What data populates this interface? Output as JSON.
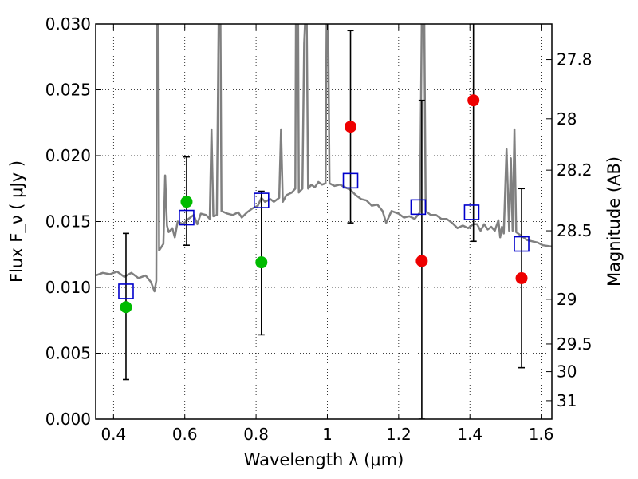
{
  "chart_data": {
    "type": "scatter",
    "xlabel": "Wavelength  λ (μm)",
    "ylabel": "Flux  F_ν  ( μJy )",
    "y2label": "Magnitude (AB)",
    "xlim": [
      0.35,
      1.63
    ],
    "ylim": [
      0.0,
      0.03
    ],
    "grid": true,
    "x_ticks": [
      0.4,
      0.6,
      0.8,
      1.0,
      1.2,
      1.4,
      1.6
    ],
    "x_tick_labels": [
      "0.4",
      "0.6",
      "0.8",
      "1",
      "1.2",
      "1.4",
      "1.6"
    ],
    "y_ticks": [
      0.0,
      0.005,
      0.01,
      0.015,
      0.02,
      0.025,
      0.03
    ],
    "y_tick_labels": [
      "0.000",
      "0.005",
      "0.010",
      "0.015",
      "0.020",
      "0.025",
      "0.030"
    ],
    "y2_ticks": [
      {
        "label": "27.8",
        "flux": 0.0273
      },
      {
        "label": "28",
        "flux": 0.0228
      },
      {
        "label": "28.2",
        "flux": 0.0189
      },
      {
        "label": "28.5",
        "flux": 0.0143
      },
      {
        "label": "29",
        "flux": 0.0091
      },
      {
        "label": "29.5",
        "flux": 0.0057
      },
      {
        "label": "30",
        "flux": 0.0036
      },
      {
        "label": "31",
        "flux": 0.0014
      }
    ],
    "model_spectrum": {
      "color": "#808080",
      "points": [
        [
          0.35,
          0.0109
        ],
        [
          0.37,
          0.0111
        ],
        [
          0.39,
          0.011
        ],
        [
          0.41,
          0.0112
        ],
        [
          0.43,
          0.0108
        ],
        [
          0.45,
          0.0111
        ],
        [
          0.47,
          0.0107
        ],
        [
          0.49,
          0.0109
        ],
        [
          0.505,
          0.0104
        ],
        [
          0.515,
          0.0097
        ],
        [
          0.52,
          0.0105
        ],
        [
          0.522,
          0.0305
        ],
        [
          0.526,
          0.0305
        ],
        [
          0.528,
          0.0128
        ],
        [
          0.54,
          0.0133
        ],
        [
          0.545,
          0.0185
        ],
        [
          0.55,
          0.0147
        ],
        [
          0.555,
          0.0142
        ],
        [
          0.565,
          0.0145
        ],
        [
          0.572,
          0.0138
        ],
        [
          0.58,
          0.015
        ],
        [
          0.595,
          0.0148
        ],
        [
          0.61,
          0.0152
        ],
        [
          0.625,
          0.0155
        ],
        [
          0.635,
          0.0148
        ],
        [
          0.645,
          0.0156
        ],
        [
          0.66,
          0.0155
        ],
        [
          0.67,
          0.0152
        ],
        [
          0.675,
          0.022
        ],
        [
          0.68,
          0.0154
        ],
        [
          0.69,
          0.0155
        ],
        [
          0.695,
          0.0305
        ],
        [
          0.7,
          0.0305
        ],
        [
          0.703,
          0.0158
        ],
        [
          0.72,
          0.0156
        ],
        [
          0.735,
          0.0155
        ],
        [
          0.75,
          0.0157
        ],
        [
          0.76,
          0.0153
        ],
        [
          0.775,
          0.0157
        ],
        [
          0.79,
          0.016
        ],
        [
          0.805,
          0.0162
        ],
        [
          0.815,
          0.0168
        ],
        [
          0.825,
          0.0165
        ],
        [
          0.84,
          0.0167
        ],
        [
          0.85,
          0.0165
        ],
        [
          0.865,
          0.0168
        ],
        [
          0.87,
          0.022
        ],
        [
          0.875,
          0.0165
        ],
        [
          0.885,
          0.017
        ],
        [
          0.9,
          0.0172
        ],
        [
          0.91,
          0.0175
        ],
        [
          0.912,
          0.0305
        ],
        [
          0.918,
          0.0305
        ],
        [
          0.92,
          0.0172
        ],
        [
          0.93,
          0.0175
        ],
        [
          0.935,
          0.0285
        ],
        [
          0.938,
          0.0305
        ],
        [
          0.942,
          0.0305
        ],
        [
          0.946,
          0.0175
        ],
        [
          0.955,
          0.0178
        ],
        [
          0.965,
          0.0176
        ],
        [
          0.975,
          0.018
        ],
        [
          0.985,
          0.0178
        ],
        [
          0.995,
          0.0179
        ],
        [
          0.998,
          0.0305
        ],
        [
          1.002,
          0.0305
        ],
        [
          1.006,
          0.0179
        ],
        [
          1.02,
          0.0177
        ],
        [
          1.035,
          0.0178
        ],
        [
          1.05,
          0.0176
        ],
        [
          1.065,
          0.0174
        ],
        [
          1.08,
          0.017
        ],
        [
          1.095,
          0.0167
        ],
        [
          1.11,
          0.0166
        ],
        [
          1.125,
          0.0162
        ],
        [
          1.14,
          0.0163
        ],
        [
          1.155,
          0.0158
        ],
        [
          1.165,
          0.0149
        ],
        [
          1.18,
          0.0158
        ],
        [
          1.2,
          0.0156
        ],
        [
          1.215,
          0.0153
        ],
        [
          1.23,
          0.0154
        ],
        [
          1.245,
          0.0152
        ],
        [
          1.26,
          0.0157
        ],
        [
          1.265,
          0.0305
        ],
        [
          1.272,
          0.0305
        ],
        [
          1.276,
          0.0158
        ],
        [
          1.29,
          0.0155
        ],
        [
          1.305,
          0.0155
        ],
        [
          1.32,
          0.0152
        ],
        [
          1.335,
          0.0152
        ],
        [
          1.35,
          0.0149
        ],
        [
          1.365,
          0.0145
        ],
        [
          1.38,
          0.0147
        ],
        [
          1.395,
          0.0145
        ],
        [
          1.41,
          0.0148
        ],
        [
          1.42,
          0.0148
        ],
        [
          1.43,
          0.0143
        ],
        [
          1.44,
          0.0148
        ],
        [
          1.45,
          0.0144
        ],
        [
          1.46,
          0.0146
        ],
        [
          1.47,
          0.0143
        ],
        [
          1.48,
          0.0151
        ],
        [
          1.485,
          0.0138
        ],
        [
          1.49,
          0.0146
        ],
        [
          1.495,
          0.0141
        ],
        [
          1.503,
          0.0205
        ],
        [
          1.51,
          0.0143
        ],
        [
          1.515,
          0.0198
        ],
        [
          1.52,
          0.0143
        ],
        [
          1.525,
          0.022
        ],
        [
          1.53,
          0.0142
        ],
        [
          1.54,
          0.014
        ],
        [
          1.55,
          0.0138
        ],
        [
          1.56,
          0.0136
        ],
        [
          1.575,
          0.0135
        ],
        [
          1.59,
          0.0134
        ],
        [
          1.605,
          0.0132
        ],
        [
          1.63,
          0.0131
        ]
      ]
    },
    "model_photometry": {
      "color": "#0000cc",
      "marker": "open-square",
      "points": [
        {
          "x": 0.435,
          "y": 0.0097
        },
        {
          "x": 0.605,
          "y": 0.0153
        },
        {
          "x": 0.815,
          "y": 0.0166
        },
        {
          "x": 1.065,
          "y": 0.0181
        },
        {
          "x": 1.255,
          "y": 0.0161
        },
        {
          "x": 1.405,
          "y": 0.0157
        },
        {
          "x": 1.545,
          "y": 0.0133
        }
      ]
    },
    "observed_detections": {
      "color": "#00bb00",
      "marker": "filled-circle",
      "points": [
        {
          "x": 0.435,
          "y": 0.0085,
          "ylow": 0.003,
          "yhigh": 0.0141
        },
        {
          "x": 0.605,
          "y": 0.0165,
          "ylow": 0.0132,
          "yhigh": 0.0199
        },
        {
          "x": 0.815,
          "y": 0.0119,
          "ylow": 0.0064,
          "yhigh": 0.0173
        }
      ]
    },
    "observed_nondetections": {
      "color": "#ee0000",
      "marker": "filled-circle",
      "points": [
        {
          "x": 1.065,
          "y": 0.0222,
          "ylow": 0.0149,
          "yhigh": 0.0295
        },
        {
          "x": 1.265,
          "y": 0.012,
          "ylow": 0.0,
          "yhigh": 0.0242
        },
        {
          "x": 1.41,
          "y": 0.0242,
          "ylow": 0.0135,
          "yhigh": 0.031
        },
        {
          "x": 1.545,
          "y": 0.0107,
          "ylow": 0.0039,
          "yhigh": 0.0175
        }
      ]
    }
  }
}
